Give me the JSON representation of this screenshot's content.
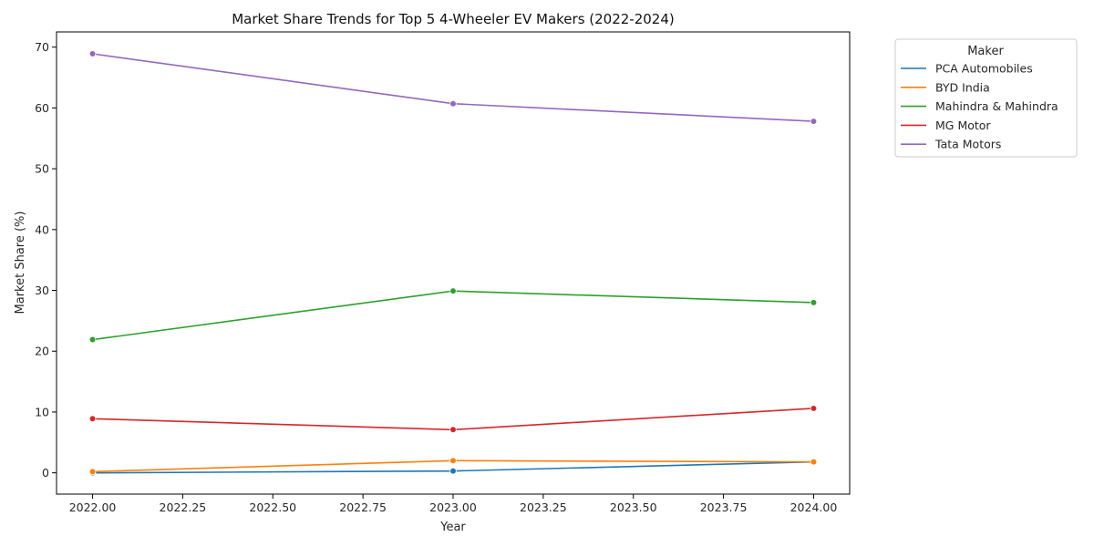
{
  "chart_data": {
    "type": "line",
    "title": "Market Share Trends for Top 5 4-Wheeler EV Makers (2022-2024)",
    "xlabel": "Year",
    "ylabel": "Market Share (%)",
    "x": [
      2022,
      2023,
      2024
    ],
    "xlim": [
      2021.9,
      2024.1
    ],
    "ylim": [
      -3.5,
      72.5
    ],
    "x_ticks": [
      2022.0,
      2022.25,
      2022.5,
      2022.75,
      2023.0,
      2023.25,
      2023.5,
      2023.75,
      2024.0
    ],
    "x_tick_labels": [
      "2022.00",
      "2022.25",
      "2022.50",
      "2022.75",
      "2023.00",
      "2023.25",
      "2023.50",
      "2023.75",
      "2024.00"
    ],
    "y_ticks": [
      0,
      10,
      20,
      30,
      40,
      50,
      60,
      70
    ],
    "y_tick_labels": [
      "0",
      "10",
      "20",
      "30",
      "40",
      "50",
      "60",
      "70"
    ],
    "grid": false,
    "legend": {
      "title": "Maker",
      "placement": "outside-top-right"
    },
    "series": [
      {
        "name": "PCA Automobiles",
        "color": "#1f77b4",
        "values": [
          0.0,
          0.3,
          1.8
        ]
      },
      {
        "name": "BYD India",
        "color": "#ff7f0e",
        "values": [
          0.2,
          2.0,
          1.8
        ]
      },
      {
        "name": "Mahindra & Mahindra",
        "color": "#2ca02c",
        "values": [
          21.9,
          29.9,
          28.0
        ]
      },
      {
        "name": "MG Motor",
        "color": "#d62728",
        "values": [
          8.9,
          7.1,
          10.6
        ]
      },
      {
        "name": "Tata Motors",
        "color": "#9467bd",
        "values": [
          68.9,
          60.7,
          57.8
        ]
      }
    ]
  }
}
